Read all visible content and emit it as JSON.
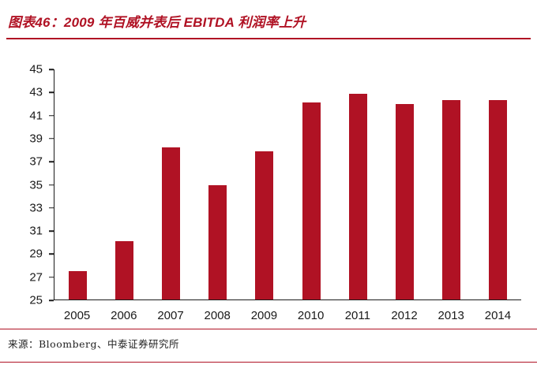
{
  "title": "图表46：2009 年百威并表后 EBITDA 利润率上升",
  "source": "来源：Bloomberg、中泰证券研究所",
  "colors": {
    "accent": "#B01224",
    "bar": "#B01224",
    "axis": "#1a1a1a"
  },
  "chart_data": {
    "type": "bar",
    "title": "图表46：2009 年百威并表后 EBITDA 利润率上升",
    "categories": [
      "2005",
      "2006",
      "2007",
      "2008",
      "2009",
      "2010",
      "2011",
      "2012",
      "2013",
      "2014"
    ],
    "values": [
      27.5,
      30.1,
      38.2,
      34.9,
      37.9,
      42.1,
      42.9,
      42.0,
      42.3,
      42.3
    ],
    "xlabel": "",
    "ylabel": "",
    "ylim": [
      25,
      45
    ],
    "yticks": [
      45,
      43,
      41,
      39,
      37,
      35,
      33,
      31,
      29,
      27,
      25
    ],
    "grid": false,
    "legend": false,
    "source": "来源：Bloomberg、中泰证券研究所"
  }
}
